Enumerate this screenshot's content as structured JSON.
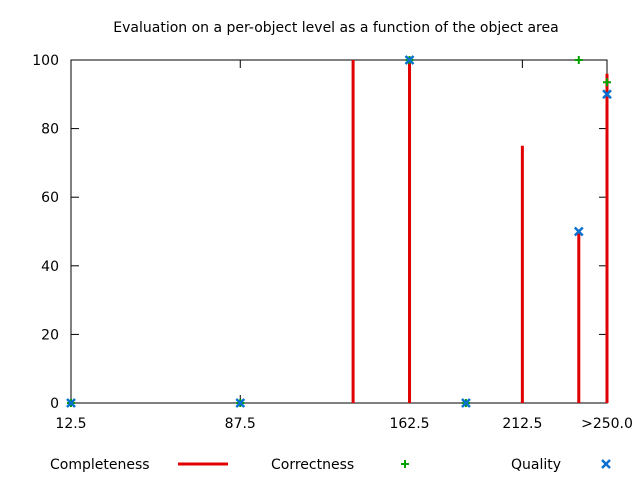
{
  "chart_data": {
    "type": "bar",
    "title": "Evaluation on a per-object level as a function of the object area",
    "xlabel": "",
    "ylabel": "",
    "xlim": [
      12.5,
      250
    ],
    "ylim": [
      0,
      100
    ],
    "x_ticks": [
      {
        "value": 12.5,
        "label": "12.5"
      },
      {
        "value": 87.5,
        "label": "87.5"
      },
      {
        "value": 162.5,
        "label": "162.5"
      },
      {
        "value": 212.5,
        "label": "212.5"
      },
      {
        "value": 250,
        "label": ">250.0"
      }
    ],
    "y_ticks": [
      0,
      20,
      40,
      60,
      80,
      100
    ],
    "grid": false,
    "legend_position": "bottom",
    "series": [
      {
        "name": "Completeness",
        "style": "impulses",
        "color": "#e00000",
        "points": [
          {
            "x": 12.5,
            "y": 0
          },
          {
            "x": 87.5,
            "y": 0
          },
          {
            "x": 137.5,
            "y": 100
          },
          {
            "x": 162.5,
            "y": 100
          },
          {
            "x": 187.5,
            "y": 0
          },
          {
            "x": 212.5,
            "y": 75
          },
          {
            "x": 237.5,
            "y": 50
          },
          {
            "x": 250,
            "y": 96
          }
        ]
      },
      {
        "name": "Correctness",
        "style": "plus",
        "color": "#00a000",
        "points": [
          {
            "x": 12.5,
            "y": 0
          },
          {
            "x": 87.5,
            "y": 0
          },
          {
            "x": 162.5,
            "y": 100
          },
          {
            "x": 187.5,
            "y": 0
          },
          {
            "x": 237.5,
            "y": 100
          },
          {
            "x": 250,
            "y": 93.5
          }
        ]
      },
      {
        "name": "Quality",
        "style": "cross",
        "color": "#0a70d0",
        "points": [
          {
            "x": 12.5,
            "y": 0
          },
          {
            "x": 87.5,
            "y": 0
          },
          {
            "x": 162.5,
            "y": 100
          },
          {
            "x": 187.5,
            "y": 0
          },
          {
            "x": 237.5,
            "y": 50
          },
          {
            "x": 250,
            "y": 90
          }
        ]
      }
    ]
  }
}
